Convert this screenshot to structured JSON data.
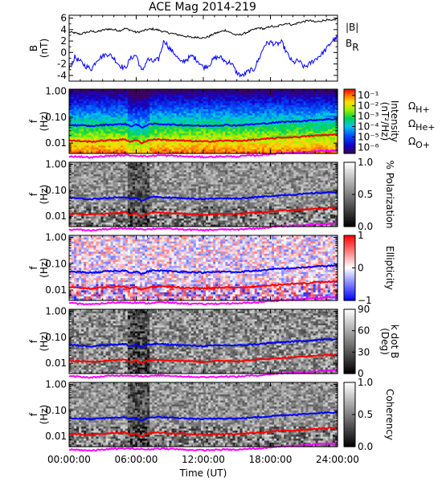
{
  "title": "ACE Mag 2014-219",
  "x_axis": {
    "label": "Time (UT)",
    "ticks": [
      "00:00:00",
      "06:00:00",
      "12:00:00",
      "18:00:00",
      "24:00:00"
    ],
    "tick_hours": [
      0,
      6,
      12,
      18,
      24
    ],
    "range_hours": [
      0,
      24
    ]
  },
  "gyro_labels": [
    {
      "text": "Ω",
      "sub": "H+",
      "color": "#0000ff"
    },
    {
      "text": "Ω",
      "sub": "He+",
      "color": "#ff0000"
    },
    {
      "text": "Ω",
      "sub": "O+",
      "color": "#ff00ff"
    }
  ],
  "chart_data": [
    {
      "type": "line",
      "panel": "field",
      "ylabel": "B (nT)",
      "ylabel_lines": [
        "B",
        "(nT)"
      ],
      "ylim": [
        -5,
        6.5
      ],
      "yticks": [
        "6",
        "4",
        "2",
        "0",
        "-2",
        "-4"
      ],
      "ytick_values": [
        6,
        4,
        2,
        0,
        -2,
        -4
      ],
      "series": [
        {
          "name": "|B|",
          "color": "#000000",
          "x": [
            0,
            0.5,
            1,
            1.5,
            2,
            2.5,
            3,
            3.5,
            4,
            4.5,
            5,
            5.5,
            6,
            6.5,
            7,
            7.5,
            8,
            8.5,
            9,
            9.5,
            10,
            10.5,
            11,
            11.5,
            12,
            12.5,
            13,
            13.5,
            14,
            14.5,
            15,
            15.5,
            16,
            16.5,
            17,
            17.5,
            18,
            18.5,
            19,
            19.5,
            20,
            20.5,
            21,
            21.5,
            22,
            22.5,
            23,
            23.5,
            24
          ],
          "y": [
            3.6,
            3.4,
            3.2,
            3.5,
            3.7,
            3.6,
            3.9,
            4.1,
            4.0,
            3.8,
            4.2,
            3.9,
            3.5,
            3.7,
            4.0,
            4.1,
            3.9,
            3.6,
            3.4,
            3.2,
            3.0,
            2.8,
            2.6,
            2.7,
            2.5,
            2.8,
            3.3,
            3.6,
            3.9,
            3.4,
            3.0,
            3.2,
            3.6,
            4.0,
            4.3,
            4.1,
            4.6,
            4.4,
            4.9,
            5.1,
            4.8,
            5.2,
            5.4,
            5.6,
            5.3,
            5.5,
            5.7,
            5.5,
            6.0
          ]
        },
        {
          "name": "B_R",
          "label": "B",
          "label_sub": "R",
          "color": "#0000ff",
          "x": [
            0,
            0.5,
            1,
            1.5,
            2,
            2.5,
            3,
            3.5,
            4,
            4.5,
            5,
            5.5,
            6,
            6.5,
            7,
            7.5,
            8,
            8.5,
            9,
            9.5,
            10,
            10.5,
            11,
            11.5,
            12,
            12.5,
            13,
            13.5,
            14,
            14.5,
            15,
            15.5,
            16,
            16.5,
            17,
            17.5,
            18,
            18.5,
            19,
            19.5,
            20,
            20.5,
            21,
            21.5,
            22,
            22.5,
            23,
            23.5,
            24
          ],
          "y": [
            -3.0,
            -0.8,
            -1.6,
            -2.4,
            -2.9,
            -1.2,
            -0.6,
            -0.2,
            -1.0,
            -2.2,
            -2.8,
            -1.0,
            -0.4,
            -3.4,
            -1.2,
            -1.6,
            -1.2,
            2.2,
            0.6,
            -0.3,
            -1.8,
            -1.2,
            -0.6,
            -1.4,
            -2.6,
            -2.2,
            -1.0,
            -0.8,
            -1.6,
            -1.8,
            -3.6,
            -4.1,
            -3.3,
            -3.0,
            -1.0,
            1.4,
            1.8,
            1.4,
            1.8,
            -0.2,
            -1.8,
            -1.4,
            -2.6,
            -2.0,
            -1.2,
            -0.4,
            0.6,
            2.0,
            2.6
          ]
        }
      ]
    },
    {
      "type": "heatmap",
      "panel": "power",
      "ylabel": "f (Hz)",
      "yticks": [
        "1.00",
        "0.10",
        "0.01"
      ],
      "ytick_values": [
        1.0,
        0.1,
        0.01
      ],
      "ylim": [
        0.004,
        1.2
      ],
      "yscale": "log",
      "colorbar": {
        "label": "Intensity (nT²/Hz)",
        "label_lines": [
          "Intensity",
          "(nT²/Hz)"
        ],
        "ticks": [
          "10⁻¹",
          "10⁻²",
          "10⁻³",
          "10⁻⁴",
          "10⁻⁵",
          "10⁻⁶"
        ],
        "tick_values": [
          -1,
          -2,
          -3,
          -4,
          -5,
          -6
        ],
        "range": [
          -6.6,
          -0.4
        ],
        "palette": "rainbow"
      }
    },
    {
      "type": "heatmap",
      "panel": "polarization",
      "ylabel": "f (Hz)",
      "yticks": [
        "1.00",
        "0.10",
        "0.01"
      ],
      "ytick_values": [
        1.0,
        0.1,
        0.01
      ],
      "ylim": [
        0.004,
        1.2
      ],
      "yscale": "log",
      "colorbar": {
        "label": "% Polarization",
        "label_lines": [
          "% Polarization"
        ],
        "ticks": [
          "1.0",
          "0.5",
          "0.0"
        ],
        "tick_values": [
          1.0,
          0.5,
          0.0
        ],
        "range": [
          0,
          1
        ],
        "palette": "gray"
      }
    },
    {
      "type": "heatmap",
      "panel": "ellipticity",
      "ylabel": "f (Hz)",
      "yticks": [
        "1.00",
        "0.10",
        "0.01"
      ],
      "ytick_values": [
        1.0,
        0.1,
        0.01
      ],
      "ylim": [
        0.004,
        1.2
      ],
      "yscale": "log",
      "colorbar": {
        "label": "Ellipticity",
        "label_lines": [
          "Ellipticity"
        ],
        "ticks": [
          "1",
          "0",
          "−1"
        ],
        "tick_values": [
          1,
          0,
          -1
        ],
        "range": [
          -1,
          1
        ],
        "palette": "bwr"
      }
    },
    {
      "type": "heatmap",
      "panel": "k_dot_b",
      "ylabel": "f (Hz)",
      "yticks": [
        "1.00",
        "0.10",
        "0.01"
      ],
      "ytick_values": [
        1.0,
        0.1,
        0.01
      ],
      "ylim": [
        0.004,
        1.2
      ],
      "yscale": "log",
      "colorbar": {
        "label": "k dot B (Deg)",
        "label_lines": [
          "k dot B",
          "(Deg)"
        ],
        "ticks": [
          "90",
          "60",
          "30",
          "0"
        ],
        "tick_values": [
          90,
          60,
          30,
          0
        ],
        "range": [
          0,
          90
        ],
        "palette": "gray"
      }
    },
    {
      "type": "heatmap",
      "panel": "coherency",
      "ylabel": "f (Hz)",
      "yticks": [
        "1.00",
        "0.10",
        "0.01"
      ],
      "ytick_values": [
        1.0,
        0.1,
        0.01
      ],
      "ylim": [
        0.004,
        1.2
      ],
      "yscale": "log",
      "colorbar": {
        "label": "Coherency",
        "label_lines": [
          "Coherency"
        ],
        "ticks": [
          "1.0",
          "0.5",
          "0.0"
        ],
        "tick_values": [
          1.0,
          0.5,
          0.0
        ],
        "range": [
          0,
          1
        ],
        "palette": "gray"
      }
    }
  ],
  "gyrofrequency_lines": [
    {
      "name": "H+",
      "color": "#0000ff",
      "x": [
        0,
        1,
        2,
        3,
        4,
        5,
        5.5,
        6,
        6.5,
        7,
        7.5,
        8,
        9,
        10,
        11,
        12,
        13,
        14,
        15,
        16,
        17,
        18,
        19,
        20,
        21,
        22,
        23,
        24
      ],
      "f": [
        0.05,
        0.048,
        0.045,
        0.05,
        0.052,
        0.055,
        0.045,
        0.052,
        0.04,
        0.05,
        0.055,
        0.055,
        0.052,
        0.05,
        0.048,
        0.046,
        0.048,
        0.05,
        0.048,
        0.052,
        0.055,
        0.06,
        0.065,
        0.068,
        0.072,
        0.078,
        0.082,
        0.085
      ]
    },
    {
      "name": "He+",
      "color": "#ff0000",
      "x": [
        0,
        1,
        2,
        3,
        4,
        5,
        5.5,
        6,
        6.5,
        7,
        7.5,
        8,
        9,
        10,
        11,
        12,
        13,
        14,
        15,
        16,
        17,
        18,
        19,
        20,
        21,
        22,
        23,
        24
      ],
      "f": [
        0.0125,
        0.012,
        0.0113,
        0.0125,
        0.013,
        0.0138,
        0.0113,
        0.013,
        0.01,
        0.0125,
        0.0138,
        0.0138,
        0.013,
        0.0125,
        0.012,
        0.0115,
        0.012,
        0.0125,
        0.012,
        0.013,
        0.0138,
        0.015,
        0.0163,
        0.017,
        0.018,
        0.0195,
        0.0205,
        0.0213
      ]
    },
    {
      "name": "O+",
      "color": "#ff00ff",
      "x": [
        0,
        1,
        2,
        3,
        4,
        5,
        6,
        7,
        8,
        9,
        10,
        11,
        12,
        13,
        14,
        15,
        16,
        17,
        18,
        19,
        20,
        21,
        22,
        23,
        24
      ],
      "f": [
        0.0031,
        0.003,
        0.0028,
        0.0031,
        0.0033,
        0.0034,
        0.0033,
        0.0031,
        0.0034,
        0.0033,
        0.0031,
        0.003,
        0.0029,
        0.003,
        0.0031,
        0.003,
        0.0033,
        0.0034,
        0.0038,
        0.0041,
        0.0043,
        0.0045,
        0.0049,
        0.0051,
        0.0053
      ]
    }
  ]
}
